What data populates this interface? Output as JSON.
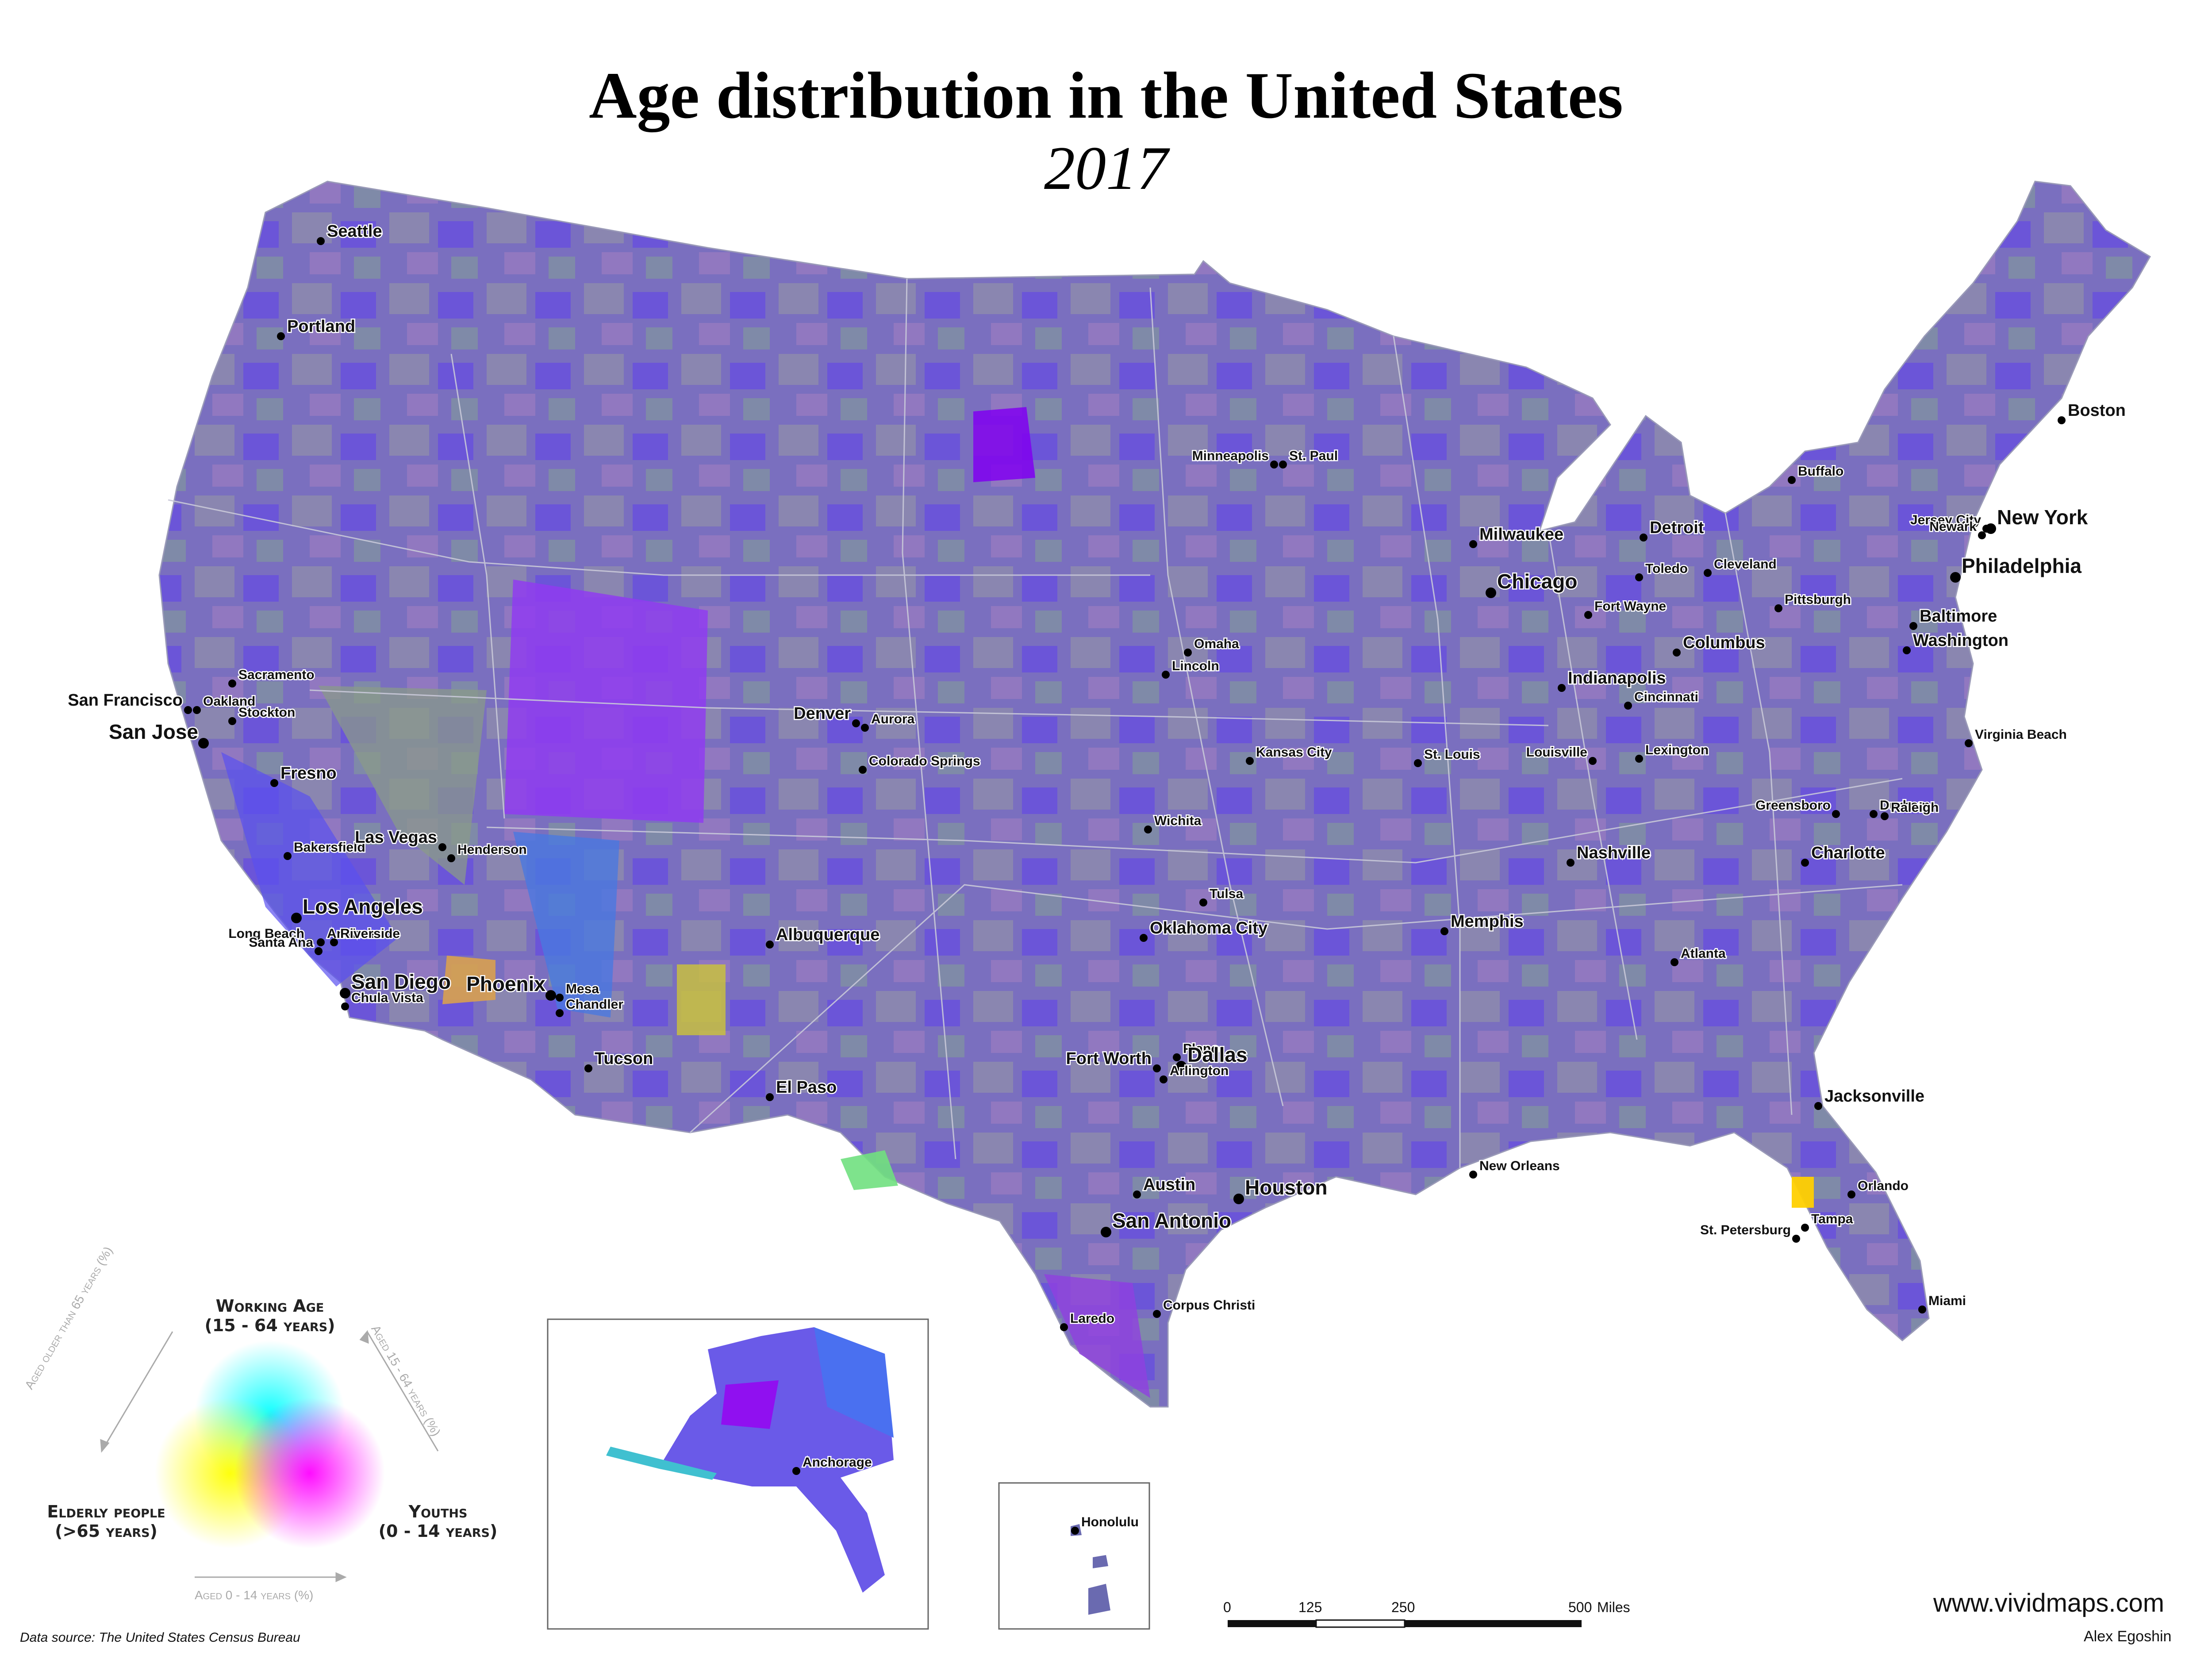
{
  "title": "Age distribution in the United States",
  "subtitle": "2017",
  "legend": {
    "working_age": "Working Age",
    "working_age_range": "(15 - 64 years)",
    "elderly": "Elderly people",
    "elderly_range": "(>65 years)",
    "youths": "Youths",
    "youths_range": "(0 - 14 years)",
    "axis_elderly": "Aged older than 65 years (%)",
    "axis_working": "Aged 15 - 64 years (%)",
    "axis_youth": "Aged 0 - 14 years (%)",
    "colors": {
      "working": "#00ffff",
      "elderly": "#ffff00",
      "youth": "#ff00ff"
    }
  },
  "scale": {
    "ticks": [
      "0",
      "125",
      "250",
      "500"
    ],
    "unit": "Miles"
  },
  "source": "Data source: The United States Census Bureau",
  "website": "www.vividmaps.com",
  "author": "Alex Egoshin",
  "colors": {
    "land": "#7a6fbf",
    "land_purple": "#8f3cf0",
    "land_gray": "#8a8a9a",
    "border": "#c8c8d8"
  },
  "cities": [
    {
      "name": "Seattle",
      "size": "s"
    },
    {
      "name": "Portland",
      "size": "s"
    },
    {
      "name": "Sacramento",
      "size": "xs"
    },
    {
      "name": "San Francisco",
      "size": "s"
    },
    {
      "name": "Oakland",
      "size": "xs"
    },
    {
      "name": "Stockton",
      "size": "xs"
    },
    {
      "name": "San Jose",
      "size": "l"
    },
    {
      "name": "Fresno",
      "size": "s"
    },
    {
      "name": "Bakersfield",
      "size": "xs"
    },
    {
      "name": "Las Vegas",
      "size": "s"
    },
    {
      "name": "Henderson",
      "size": "xs"
    },
    {
      "name": "Los Angeles",
      "size": "l"
    },
    {
      "name": "Long Beach",
      "size": "xs"
    },
    {
      "name": "Anaheim",
      "size": "xs"
    },
    {
      "name": "Riverside",
      "size": "xs"
    },
    {
      "name": "Santa Ana",
      "size": "xs"
    },
    {
      "name": "San Diego",
      "size": "l"
    },
    {
      "name": "Chula Vista",
      "size": "xs"
    },
    {
      "name": "Phoenix",
      "size": "l"
    },
    {
      "name": "Mesa",
      "size": "xs"
    },
    {
      "name": "Chandler",
      "size": "xs"
    },
    {
      "name": "Tucson",
      "size": "s"
    },
    {
      "name": "Albuquerque",
      "size": "s"
    },
    {
      "name": "El Paso",
      "size": "s"
    },
    {
      "name": "Denver",
      "size": "s"
    },
    {
      "name": "Aurora",
      "size": "xs"
    },
    {
      "name": "Colorado Springs",
      "size": "xs"
    },
    {
      "name": "Minneapolis",
      "size": "xs"
    },
    {
      "name": "St. Paul",
      "size": "xs"
    },
    {
      "name": "Omaha",
      "size": "xs"
    },
    {
      "name": "Lincoln",
      "size": "xs"
    },
    {
      "name": "Kansas City",
      "size": "xs"
    },
    {
      "name": "Wichita",
      "size": "xs"
    },
    {
      "name": "Tulsa",
      "size": "xs"
    },
    {
      "name": "Oklahoma City",
      "size": "s"
    },
    {
      "name": "Fort Worth",
      "size": "s"
    },
    {
      "name": "Plano",
      "size": "xs"
    },
    {
      "name": "Dallas",
      "size": "l"
    },
    {
      "name": "Arlington",
      "size": "xs"
    },
    {
      "name": "Austin",
      "size": "s"
    },
    {
      "name": "San Antonio",
      "size": "l"
    },
    {
      "name": "Houston",
      "size": "l"
    },
    {
      "name": "Corpus Christi",
      "size": "xs"
    },
    {
      "name": "Laredo",
      "size": "xs"
    },
    {
      "name": "Milwaukee",
      "size": "s"
    },
    {
      "name": "Chicago",
      "size": "l"
    },
    {
      "name": "St. Louis",
      "size": "xs"
    },
    {
      "name": "Memphis",
      "size": "s"
    },
    {
      "name": "New Orleans",
      "size": "xs"
    },
    {
      "name": "Nashville",
      "size": "s"
    },
    {
      "name": "Louisville",
      "size": "xs"
    },
    {
      "name": "Lexington",
      "size": "xs"
    },
    {
      "name": "Indianapolis",
      "size": "s"
    },
    {
      "name": "Fort Wayne",
      "size": "xs"
    },
    {
      "name": "Cincinnati",
      "size": "xs"
    },
    {
      "name": "Columbus",
      "size": "s"
    },
    {
      "name": "Detroit",
      "size": "s"
    },
    {
      "name": "Toledo",
      "size": "xs"
    },
    {
      "name": "Cleveland",
      "size": "xs"
    },
    {
      "name": "Pittsburgh",
      "size": "xs"
    },
    {
      "name": "Buffalo",
      "size": "xs"
    },
    {
      "name": "Boston",
      "size": "s"
    },
    {
      "name": "New York",
      "size": "l"
    },
    {
      "name": "Jersey City",
      "size": "xs"
    },
    {
      "name": "Newark",
      "size": "xs"
    },
    {
      "name": "Philadelphia",
      "size": "l"
    },
    {
      "name": "Baltimore",
      "size": "s"
    },
    {
      "name": "Washington",
      "size": "s"
    },
    {
      "name": "Virginia Beach",
      "size": "xs"
    },
    {
      "name": "Greensboro",
      "size": "xs"
    },
    {
      "name": "Durham",
      "size": "xs"
    },
    {
      "name": "Raleigh",
      "size": "xs"
    },
    {
      "name": "Charlotte",
      "size": "s"
    },
    {
      "name": "Atlanta",
      "size": "xs"
    },
    {
      "name": "Jacksonville",
      "size": "s"
    },
    {
      "name": "Orlando",
      "size": "xs"
    },
    {
      "name": "Tampa",
      "size": "xs"
    },
    {
      "name": "St. Petersburg",
      "size": "xs"
    },
    {
      "name": "Miami",
      "size": "xs"
    },
    {
      "name": "Anchorage",
      "size": "xs"
    },
    {
      "name": "Honolulu",
      "size": "xs"
    }
  ]
}
